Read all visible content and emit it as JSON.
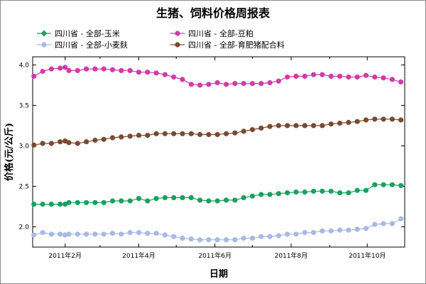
{
  "chart_data": {
    "type": "line",
    "title": "生猪、饲料价格周报表",
    "xlabel": "日期",
    "ylabel": "价格(元/公斤)",
    "x": [
      "2011-01-07",
      "2011-01-14",
      "2011-01-21",
      "2011-01-28",
      "2011-02-01",
      "2011-02-04",
      "2011-02-11",
      "2011-02-18",
      "2011-02-25",
      "2011-03-04",
      "2011-03-11",
      "2011-03-18",
      "2011-03-25",
      "2011-04-01",
      "2011-04-08",
      "2011-04-15",
      "2011-04-22",
      "2011-04-29",
      "2011-05-06",
      "2011-05-13",
      "2011-05-20",
      "2011-05-27",
      "2011-06-03",
      "2011-06-10",
      "2011-06-17",
      "2011-06-24",
      "2011-07-01",
      "2011-07-08",
      "2011-07-15",
      "2011-07-22",
      "2011-07-29",
      "2011-08-05",
      "2011-08-12",
      "2011-08-19",
      "2011-08-26",
      "2011-09-02",
      "2011-09-09",
      "2011-09-16",
      "2011-09-23",
      "2011-09-30",
      "2011-10-07",
      "2011-10-14",
      "2011-10-21",
      "2011-10-28"
    ],
    "xlim": [
      "2011-01-06",
      "2011-10-31"
    ],
    "x_ticks": [
      {
        "date": "2011-02-01",
        "label": "2011年2月"
      },
      {
        "date": "2011-04-01",
        "label": "2011年4月"
      },
      {
        "date": "2011-06-01",
        "label": "2011年6月"
      },
      {
        "date": "2011-08-01",
        "label": "2011年8月"
      },
      {
        "date": "2011-10-01",
        "label": "2011年10月"
      }
    ],
    "ylim": [
      1.75,
      4.1
    ],
    "y_ticks": [
      "2.0",
      "2.5",
      "3.0",
      "3.5",
      "4.0"
    ],
    "grid": false,
    "legend_placement": "top, outside plot, two columns",
    "series": [
      {
        "name": "四川省 - 全部-玉米",
        "color": "#1aa060",
        "values": [
          2.28,
          2.28,
          2.28,
          2.28,
          2.28,
          2.3,
          2.3,
          2.3,
          2.3,
          2.3,
          2.32,
          2.32,
          2.32,
          2.35,
          2.32,
          2.35,
          2.36,
          2.36,
          2.36,
          2.36,
          2.33,
          2.32,
          2.32,
          2.33,
          2.33,
          2.36,
          2.38,
          2.4,
          2.4,
          2.41,
          2.42,
          2.43,
          2.43,
          2.44,
          2.44,
          2.44,
          2.42,
          2.42,
          2.45,
          2.45,
          2.52,
          2.52,
          2.52,
          2.51
        ]
      },
      {
        "name": "四川省 - 全部-小麦麸",
        "color": "#a8b9e6",
        "values": [
          1.9,
          1.93,
          1.91,
          1.91,
          1.9,
          1.91,
          1.91,
          1.91,
          1.91,
          1.91,
          1.92,
          1.91,
          1.93,
          1.93,
          1.92,
          1.92,
          1.9,
          1.88,
          1.86,
          1.85,
          1.84,
          1.84,
          1.84,
          1.84,
          1.84,
          1.86,
          1.86,
          1.88,
          1.88,
          1.89,
          1.91,
          1.91,
          1.93,
          1.93,
          1.95,
          1.95,
          1.96,
          1.96,
          1.97,
          1.98,
          2.03,
          2.04,
          2.04,
          2.1
        ]
      },
      {
        "name": "四川省 - 全部-豆粕",
        "color": "#d03ca8",
        "values": [
          3.86,
          3.92,
          3.95,
          3.96,
          3.97,
          3.93,
          3.93,
          3.95,
          3.95,
          3.95,
          3.94,
          3.93,
          3.93,
          3.91,
          3.91,
          3.9,
          3.88,
          3.85,
          3.82,
          3.76,
          3.75,
          3.76,
          3.78,
          3.76,
          3.77,
          3.77,
          3.77,
          3.77,
          3.78,
          3.8,
          3.85,
          3.86,
          3.86,
          3.88,
          3.88,
          3.86,
          3.86,
          3.85,
          3.85,
          3.87,
          3.85,
          3.84,
          3.82,
          3.79
        ]
      },
      {
        "name": "四川省 - 全部-育肥猪配合料",
        "color": "#7a4a30",
        "values": [
          3.01,
          3.03,
          3.03,
          3.05,
          3.06,
          3.04,
          3.03,
          3.05,
          3.07,
          3.08,
          3.1,
          3.11,
          3.12,
          3.13,
          3.13,
          3.15,
          3.15,
          3.15,
          3.15,
          3.15,
          3.14,
          3.14,
          3.14,
          3.15,
          3.16,
          3.18,
          3.2,
          3.22,
          3.24,
          3.25,
          3.25,
          3.25,
          3.25,
          3.25,
          3.25,
          3.27,
          3.28,
          3.29,
          3.3,
          3.32,
          3.33,
          3.33,
          3.33,
          3.32
        ]
      }
    ]
  }
}
